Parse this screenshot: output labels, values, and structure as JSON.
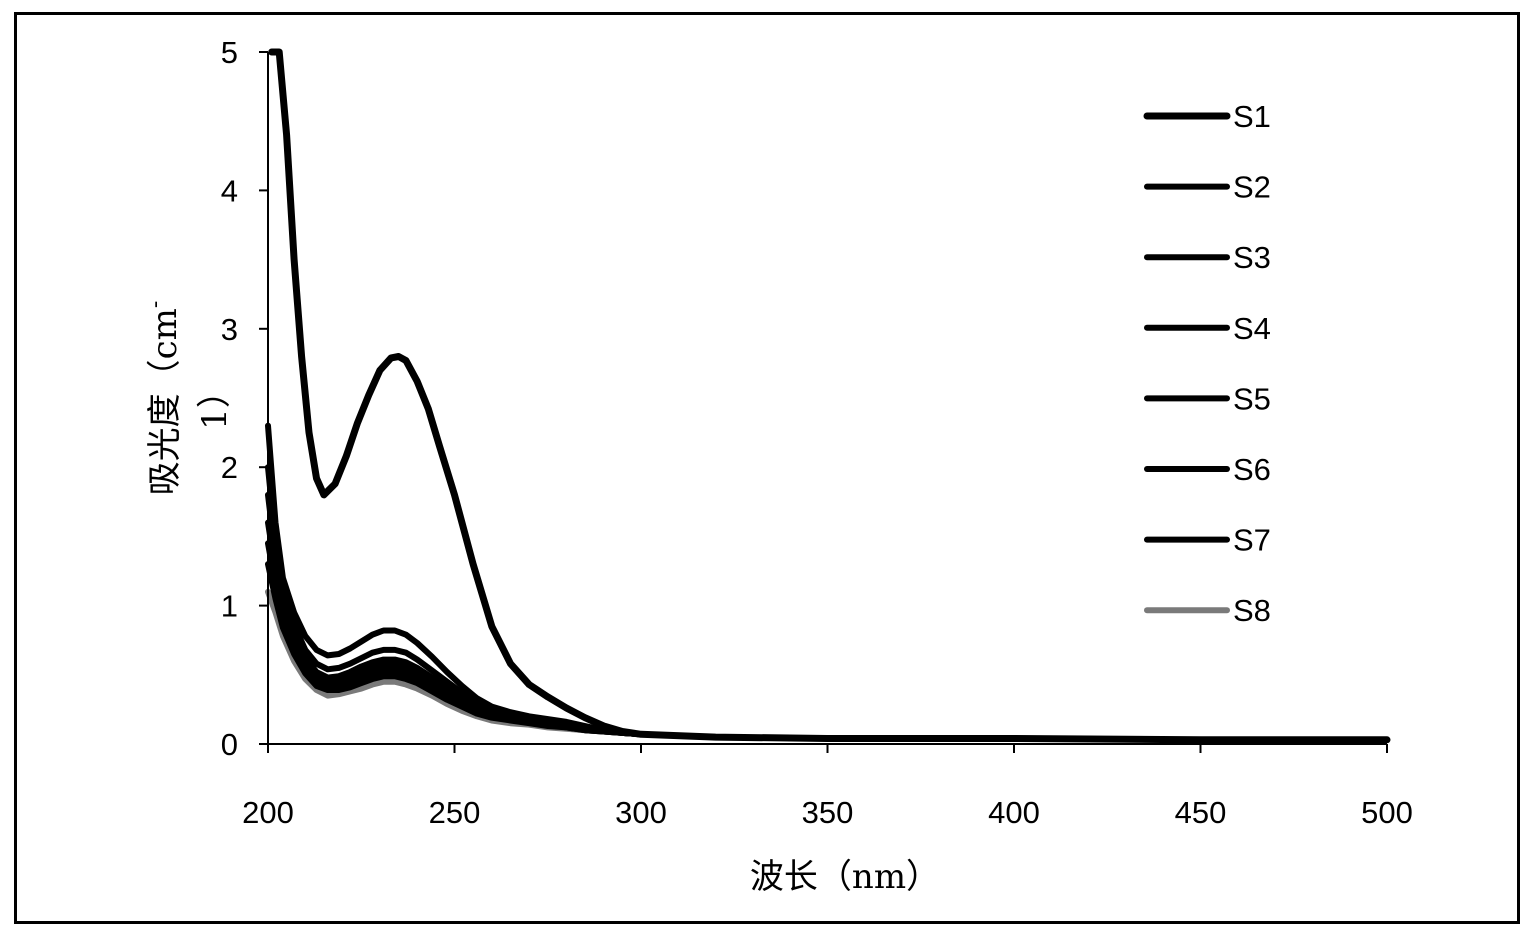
{
  "chart_data": {
    "type": "line",
    "title": "",
    "xlabel": "波长（nm）",
    "ylabel_main": "吸光度（cm",
    "ylabel_sup": "-",
    "ylabel_tail": "1）",
    "xlim": [
      200,
      500
    ],
    "ylim": [
      0,
      5
    ],
    "x_ticks": [
      "200",
      "250",
      "300",
      "350",
      "400",
      "450",
      "500"
    ],
    "y_ticks": [
      "0",
      "1",
      "2",
      "3",
      "4",
      "5"
    ],
    "grid": false,
    "legend_position": "right",
    "colors": {
      "axis": "#000000",
      "dark": "#000000",
      "light": "#7a7a7a"
    },
    "series": [
      {
        "name": "S1",
        "points": [
          [
            201,
            5.0
          ],
          [
            203,
            5.0
          ],
          [
            205,
            4.4
          ],
          [
            207,
            3.5
          ],
          [
            209,
            2.8
          ],
          [
            211,
            2.25
          ],
          [
            213,
            1.92
          ],
          [
            215,
            1.8
          ],
          [
            218,
            1.88
          ],
          [
            221,
            2.08
          ],
          [
            224,
            2.32
          ],
          [
            227,
            2.52
          ],
          [
            230,
            2.7
          ],
          [
            233,
            2.79
          ],
          [
            235,
            2.8
          ],
          [
            237,
            2.77
          ],
          [
            240,
            2.62
          ],
          [
            243,
            2.42
          ],
          [
            246,
            2.15
          ],
          [
            250,
            1.8
          ],
          [
            255,
            1.3
          ],
          [
            260,
            0.85
          ],
          [
            265,
            0.58
          ],
          [
            270,
            0.43
          ],
          [
            275,
            0.34
          ],
          [
            280,
            0.26
          ],
          [
            285,
            0.19
          ],
          [
            290,
            0.13
          ],
          [
            295,
            0.09
          ],
          [
            300,
            0.07
          ],
          [
            320,
            0.05
          ],
          [
            350,
            0.04
          ],
          [
            400,
            0.04
          ],
          [
            450,
            0.03
          ],
          [
            500,
            0.03
          ]
        ]
      },
      {
        "name": "S2",
        "points": [
          [
            200,
            2.3
          ],
          [
            202,
            1.6
          ],
          [
            204,
            1.2
          ],
          [
            207,
            0.95
          ],
          [
            210,
            0.78
          ],
          [
            213,
            0.68
          ],
          [
            216,
            0.64
          ],
          [
            219,
            0.65
          ],
          [
            222,
            0.69
          ],
          [
            225,
            0.74
          ],
          [
            228,
            0.79
          ],
          [
            231,
            0.82
          ],
          [
            234,
            0.82
          ],
          [
            237,
            0.79
          ],
          [
            240,
            0.73
          ],
          [
            244,
            0.63
          ],
          [
            248,
            0.52
          ],
          [
            252,
            0.42
          ],
          [
            256,
            0.33
          ],
          [
            260,
            0.27
          ],
          [
            265,
            0.23
          ],
          [
            270,
            0.2
          ],
          [
            275,
            0.18
          ],
          [
            280,
            0.16
          ],
          [
            285,
            0.13
          ],
          [
            290,
            0.1
          ],
          [
            295,
            0.08
          ],
          [
            300,
            0.07
          ],
          [
            320,
            0.05
          ],
          [
            350,
            0.04
          ],
          [
            400,
            0.04
          ],
          [
            450,
            0.03
          ],
          [
            500,
            0.03
          ]
        ]
      },
      {
        "name": "S3",
        "points": [
          [
            200,
            2.0
          ],
          [
            202,
            1.45
          ],
          [
            204,
            1.1
          ],
          [
            207,
            0.86
          ],
          [
            210,
            0.68
          ],
          [
            213,
            0.58
          ],
          [
            216,
            0.54
          ],
          [
            219,
            0.55
          ],
          [
            222,
            0.58
          ],
          [
            225,
            0.62
          ],
          [
            228,
            0.66
          ],
          [
            231,
            0.68
          ],
          [
            234,
            0.68
          ],
          [
            237,
            0.66
          ],
          [
            240,
            0.61
          ],
          [
            244,
            0.53
          ],
          [
            248,
            0.45
          ],
          [
            252,
            0.37
          ],
          [
            256,
            0.3
          ],
          [
            260,
            0.25
          ],
          [
            265,
            0.21
          ],
          [
            270,
            0.19
          ],
          [
            275,
            0.17
          ],
          [
            280,
            0.15
          ],
          [
            285,
            0.12
          ],
          [
            290,
            0.1
          ],
          [
            295,
            0.08
          ],
          [
            300,
            0.07
          ],
          [
            320,
            0.05
          ],
          [
            350,
            0.04
          ],
          [
            400,
            0.04
          ],
          [
            450,
            0.03
          ],
          [
            500,
            0.03
          ]
        ]
      },
      {
        "name": "S4",
        "points": [
          [
            200,
            1.8
          ],
          [
            202,
            1.35
          ],
          [
            204,
            1.02
          ],
          [
            207,
            0.78
          ],
          [
            210,
            0.62
          ],
          [
            213,
            0.52
          ],
          [
            216,
            0.48
          ],
          [
            219,
            0.49
          ],
          [
            222,
            0.52
          ],
          [
            225,
            0.56
          ],
          [
            228,
            0.59
          ],
          [
            231,
            0.61
          ],
          [
            234,
            0.61
          ],
          [
            237,
            0.59
          ],
          [
            240,
            0.55
          ],
          [
            244,
            0.48
          ],
          [
            248,
            0.41
          ],
          [
            252,
            0.34
          ],
          [
            256,
            0.28
          ],
          [
            260,
            0.23
          ],
          [
            265,
            0.2
          ],
          [
            270,
            0.18
          ],
          [
            275,
            0.16
          ],
          [
            280,
            0.14
          ],
          [
            285,
            0.12
          ],
          [
            290,
            0.1
          ],
          [
            295,
            0.08
          ],
          [
            300,
            0.07
          ],
          [
            320,
            0.05
          ],
          [
            350,
            0.04
          ],
          [
            400,
            0.04
          ],
          [
            450,
            0.03
          ],
          [
            500,
            0.03
          ]
        ]
      },
      {
        "name": "S5",
        "points": [
          [
            200,
            1.6
          ],
          [
            202,
            1.25
          ],
          [
            204,
            0.96
          ],
          [
            207,
            0.73
          ],
          [
            210,
            0.58
          ],
          [
            213,
            0.49
          ],
          [
            216,
            0.45
          ],
          [
            219,
            0.46
          ],
          [
            222,
            0.49
          ],
          [
            225,
            0.52
          ],
          [
            228,
            0.55
          ],
          [
            231,
            0.57
          ],
          [
            234,
            0.57
          ],
          [
            237,
            0.55
          ],
          [
            240,
            0.51
          ],
          [
            244,
            0.45
          ],
          [
            248,
            0.38
          ],
          [
            252,
            0.32
          ],
          [
            256,
            0.26
          ],
          [
            260,
            0.22
          ],
          [
            265,
            0.19
          ],
          [
            270,
            0.17
          ],
          [
            275,
            0.15
          ],
          [
            280,
            0.13
          ],
          [
            285,
            0.11
          ],
          [
            290,
            0.09
          ],
          [
            295,
            0.08
          ],
          [
            300,
            0.07
          ],
          [
            320,
            0.05
          ],
          [
            350,
            0.04
          ],
          [
            400,
            0.04
          ],
          [
            450,
            0.03
          ],
          [
            500,
            0.03
          ]
        ]
      },
      {
        "name": "S6",
        "points": [
          [
            200,
            1.45
          ],
          [
            202,
            1.15
          ],
          [
            204,
            0.9
          ],
          [
            207,
            0.69
          ],
          [
            210,
            0.54
          ],
          [
            213,
            0.45
          ],
          [
            216,
            0.42
          ],
          [
            219,
            0.42
          ],
          [
            222,
            0.45
          ],
          [
            225,
            0.48
          ],
          [
            228,
            0.51
          ],
          [
            231,
            0.53
          ],
          [
            234,
            0.53
          ],
          [
            237,
            0.51
          ],
          [
            240,
            0.47
          ],
          [
            244,
            0.41
          ],
          [
            248,
            0.35
          ],
          [
            252,
            0.29
          ],
          [
            256,
            0.24
          ],
          [
            260,
            0.2
          ],
          [
            265,
            0.18
          ],
          [
            270,
            0.16
          ],
          [
            275,
            0.14
          ],
          [
            280,
            0.12
          ],
          [
            285,
            0.1
          ],
          [
            290,
            0.09
          ],
          [
            295,
            0.08
          ],
          [
            300,
            0.07
          ],
          [
            320,
            0.05
          ],
          [
            350,
            0.04
          ],
          [
            400,
            0.04
          ],
          [
            450,
            0.03
          ],
          [
            500,
            0.03
          ]
        ]
      },
      {
        "name": "S7",
        "points": [
          [
            200,
            1.3
          ],
          [
            202,
            1.05
          ],
          [
            204,
            0.84
          ],
          [
            207,
            0.65
          ],
          [
            210,
            0.51
          ],
          [
            213,
            0.42
          ],
          [
            216,
            0.39
          ],
          [
            219,
            0.39
          ],
          [
            222,
            0.41
          ],
          [
            225,
            0.44
          ],
          [
            228,
            0.47
          ],
          [
            231,
            0.49
          ],
          [
            234,
            0.49
          ],
          [
            237,
            0.47
          ],
          [
            240,
            0.44
          ],
          [
            244,
            0.38
          ],
          [
            248,
            0.32
          ],
          [
            252,
            0.27
          ],
          [
            256,
            0.22
          ],
          [
            260,
            0.19
          ],
          [
            265,
            0.17
          ],
          [
            270,
            0.15
          ],
          [
            275,
            0.13
          ],
          [
            280,
            0.12
          ],
          [
            285,
            0.1
          ],
          [
            290,
            0.09
          ],
          [
            295,
            0.08
          ],
          [
            300,
            0.07
          ],
          [
            320,
            0.05
          ],
          [
            350,
            0.04
          ],
          [
            400,
            0.04
          ],
          [
            450,
            0.03
          ],
          [
            500,
            0.03
          ]
        ]
      },
      {
        "name": "S8",
        "points": [
          [
            200,
            1.1
          ],
          [
            202,
            0.95
          ],
          [
            204,
            0.78
          ],
          [
            207,
            0.6
          ],
          [
            210,
            0.47
          ],
          [
            213,
            0.39
          ],
          [
            216,
            0.35
          ],
          [
            219,
            0.36
          ],
          [
            222,
            0.38
          ],
          [
            225,
            0.4
          ],
          [
            228,
            0.43
          ],
          [
            231,
            0.45
          ],
          [
            234,
            0.45
          ],
          [
            237,
            0.43
          ],
          [
            240,
            0.4
          ],
          [
            244,
            0.35
          ],
          [
            248,
            0.29
          ],
          [
            252,
            0.24
          ],
          [
            256,
            0.2
          ],
          [
            260,
            0.17
          ],
          [
            265,
            0.15
          ],
          [
            270,
            0.14
          ],
          [
            275,
            0.12
          ],
          [
            280,
            0.11
          ],
          [
            285,
            0.1
          ],
          [
            290,
            0.09
          ],
          [
            295,
            0.08
          ],
          [
            300,
            0.07
          ],
          [
            320,
            0.05
          ],
          [
            350,
            0.04
          ],
          [
            400,
            0.04
          ],
          [
            450,
            0.03
          ],
          [
            500,
            0.03
          ]
        ]
      }
    ]
  }
}
